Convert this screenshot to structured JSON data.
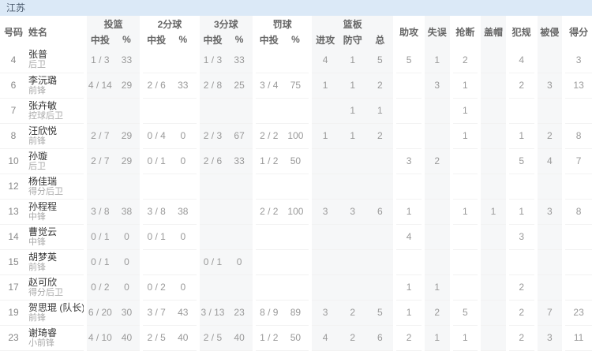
{
  "team_header": "江苏",
  "colors": {
    "team_bar_bg": "#dbe9f7",
    "shaded_column": "#f6f7f8",
    "row_divider": "#f2f2f2",
    "name_text": "#333333",
    "muted_text": "#999999"
  },
  "table": {
    "col_headers": {
      "number": "号码",
      "name": "姓名",
      "groups": [
        {
          "label": "投篮",
          "sub": [
            "中投",
            "%"
          ]
        },
        {
          "label": "2分球",
          "sub": [
            "中投",
            "%"
          ]
        },
        {
          "label": "3分球",
          "sub": [
            "中投",
            "%"
          ]
        },
        {
          "label": "罚球",
          "sub": [
            "中投",
            "%"
          ]
        },
        {
          "label": "篮板",
          "sub": [
            "进攻",
            "防守",
            "总"
          ]
        },
        {
          "label": "助攻"
        },
        {
          "label": "失误"
        },
        {
          "label": "抢断"
        },
        {
          "label": "盖帽"
        },
        {
          "label": "犯规"
        },
        {
          "label": "被侵"
        },
        {
          "label": "得分"
        }
      ]
    },
    "rows": [
      {
        "number": "4",
        "name": "张普",
        "position": "后卫",
        "stats": [
          "1 / 3",
          "33",
          "",
          "",
          "1 / 3",
          "33",
          "",
          "",
          "4",
          "1",
          "5",
          "5",
          "1",
          "2",
          "",
          "4",
          "",
          "3"
        ]
      },
      {
        "number": "6",
        "name": "李沅璐",
        "position": "前锋",
        "stats": [
          "4 / 14",
          "29",
          "2 / 6",
          "33",
          "2 / 8",
          "25",
          "3 / 4",
          "75",
          "1",
          "1",
          "2",
          "",
          "3",
          "1",
          "",
          "2",
          "3",
          "13"
        ]
      },
      {
        "number": "7",
        "name": "张卉敏",
        "position": "控球后卫",
        "stats": [
          "",
          "",
          "",
          "",
          "",
          "",
          "",
          "",
          "",
          "1",
          "1",
          "",
          "",
          "1",
          "",
          "",
          "",
          ""
        ]
      },
      {
        "number": "8",
        "name": "汪欣悦",
        "position": "前锋",
        "stats": [
          "2 / 7",
          "29",
          "0 / 4",
          "0",
          "2 / 3",
          "67",
          "2 / 2",
          "100",
          "1",
          "1",
          "2",
          "",
          "",
          "1",
          "",
          "1",
          "2",
          "8"
        ]
      },
      {
        "number": "10",
        "name": "孙璇",
        "position": "后卫",
        "stats": [
          "2 / 7",
          "29",
          "0 / 1",
          "0",
          "2 / 6",
          "33",
          "1 / 2",
          "50",
          "",
          "",
          "",
          "3",
          "2",
          "",
          "",
          "5",
          "4",
          "7"
        ]
      },
      {
        "number": "12",
        "name": "杨佳瑞",
        "position": "得分后卫",
        "stats": [
          "",
          "",
          "",
          "",
          "",
          "",
          "",
          "",
          "",
          "",
          "",
          "",
          "",
          "",
          "",
          "",
          "",
          ""
        ]
      },
      {
        "number": "13",
        "name": "孙程程",
        "position": "中锋",
        "stats": [
          "3 / 8",
          "38",
          "3 / 8",
          "38",
          "",
          "",
          "2 / 2",
          "100",
          "3",
          "3",
          "6",
          "1",
          "",
          "1",
          "1",
          "1",
          "3",
          "8"
        ]
      },
      {
        "number": "14",
        "name": "曹觉云",
        "position": "中锋",
        "stats": [
          "0 / 1",
          "0",
          "0 / 1",
          "0",
          "",
          "",
          "",
          "",
          "",
          "",
          "",
          "4",
          "",
          "",
          "",
          "3",
          "",
          ""
        ]
      },
      {
        "number": "15",
        "name": "胡梦英",
        "position": "前锋",
        "stats": [
          "0 / 1",
          "0",
          "",
          "",
          "0 / 1",
          "0",
          "",
          "",
          "",
          "",
          "",
          "",
          "",
          "",
          "",
          "",
          "",
          ""
        ]
      },
      {
        "number": "17",
        "name": "赵可欣",
        "position": "得分后卫",
        "stats": [
          "0 / 2",
          "0",
          "0 / 2",
          "0",
          "",
          "",
          "",
          "",
          "",
          "",
          "",
          "1",
          "1",
          "",
          "",
          "2",
          "",
          ""
        ]
      },
      {
        "number": "19",
        "name": "贺思琨 (队长)",
        "position": "前锋",
        "stats": [
          "6 / 20",
          "30",
          "3 / 7",
          "43",
          "3 / 13",
          "23",
          "8 / 9",
          "89",
          "3",
          "2",
          "5",
          "1",
          "2",
          "5",
          "",
          "2",
          "7",
          "23"
        ]
      },
      {
        "number": "23",
        "name": "谢琦睿",
        "position": "小前锋",
        "stats": [
          "4 / 10",
          "40",
          "2 / 5",
          "40",
          "2 / 5",
          "40",
          "1 / 2",
          "50",
          "4",
          "2",
          "6",
          "2",
          "1",
          "1",
          "",
          "2",
          "3",
          "11"
        ]
      }
    ]
  }
}
